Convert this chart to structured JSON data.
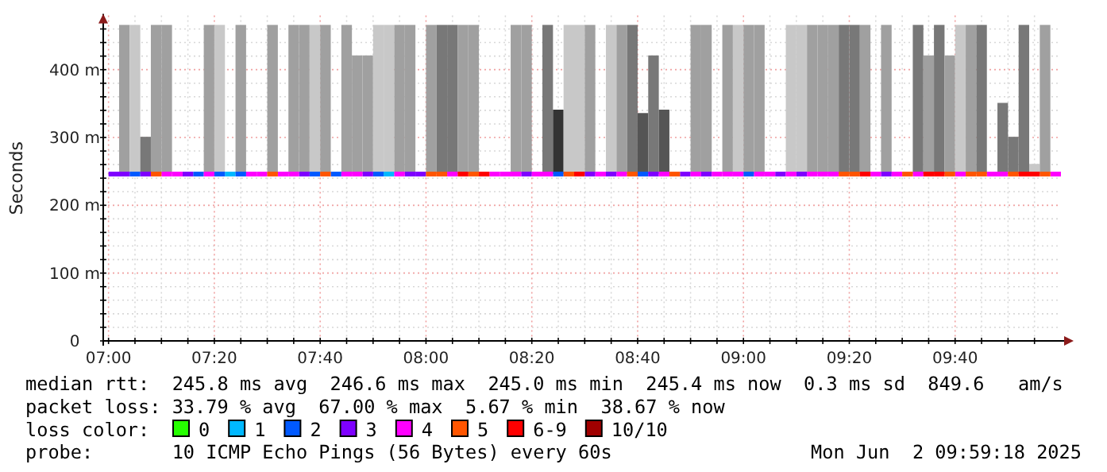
{
  "chart_data": {
    "type": "scatter",
    "ylabel": "Seconds",
    "legend_title": "loss color:",
    "legend": "bottom",
    "grid": true,
    "marker": "square",
    "xlim": [
      "2025-06-02T06:59",
      "2025-06-02T10:00"
    ],
    "xticks": [
      {
        "value": "2025-06-02T07:00",
        "label": "07:00"
      },
      {
        "value": "2025-06-02T07:05",
        "label": null
      },
      {
        "value": "2025-06-02T07:10",
        "label": null
      },
      {
        "value": "2025-06-02T07:15",
        "label": null
      },
      {
        "value": "2025-06-02T07:20",
        "label": "07:20"
      },
      {
        "value": "2025-06-02T07:25",
        "label": null
      },
      {
        "value": "2025-06-02T07:30",
        "label": null
      },
      {
        "value": "2025-06-02T07:35",
        "label": null
      },
      {
        "value": "2025-06-02T07:40",
        "label": "07:40"
      },
      {
        "value": "2025-06-02T07:45",
        "label": null
      },
      {
        "value": "2025-06-02T07:50",
        "label": null
      },
      {
        "value": "2025-06-02T07:55",
        "label": null
      },
      {
        "value": "2025-06-02T08:00",
        "label": "08:00"
      },
      {
        "value": "2025-06-02T08:05",
        "label": null
      },
      {
        "value": "2025-06-02T08:10",
        "label": null
      },
      {
        "value": "2025-06-02T08:15",
        "label": null
      },
      {
        "value": "2025-06-02T08:20",
        "label": "08:20"
      },
      {
        "value": "2025-06-02T08:25",
        "label": null
      },
      {
        "value": "2025-06-02T08:30",
        "label": null
      },
      {
        "value": "2025-06-02T08:35",
        "label": null
      },
      {
        "value": "2025-06-02T08:40",
        "label": "08:40"
      },
      {
        "value": "2025-06-02T08:45",
        "label": null
      },
      {
        "value": "2025-06-02T08:50",
        "label": null
      },
      {
        "value": "2025-06-02T08:55",
        "label": null
      },
      {
        "value": "2025-06-02T09:00",
        "label": "09:00"
      },
      {
        "value": "2025-06-02T09:05",
        "label": null
      },
      {
        "value": "2025-06-02T09:10",
        "label": null
      },
      {
        "value": "2025-06-02T09:15",
        "label": null
      },
      {
        "value": "2025-06-02T09:20",
        "label": "09:20"
      },
      {
        "value": "2025-06-02T09:25",
        "label": null
      },
      {
        "value": "2025-06-02T09:30",
        "label": null
      },
      {
        "value": "2025-06-02T09:35",
        "label": null
      },
      {
        "value": "2025-06-02T09:40",
        "label": "09:40"
      },
      {
        "value": "2025-06-02T09:45",
        "label": null
      },
      {
        "value": "2025-06-02T09:50",
        "label": null
      },
      {
        "value": "2025-06-02T09:55",
        "label": null
      }
    ],
    "ylim": [
      0,
      480
    ],
    "yticks": [
      0,
      {
        "value": 20,
        "label": null
      },
      {
        "value": 40,
        "label": null
      },
      {
        "value": 60,
        "label": null
      },
      {
        "value": 80,
        "label": null
      },
      {
        "value": 100,
        "label": "100 m"
      },
      {
        "value": 120,
        "label": null
      },
      {
        "value": 140,
        "label": null
      },
      {
        "value": 160,
        "label": null
      },
      {
        "value": 180,
        "label": null
      },
      {
        "value": 200,
        "label": "200 m"
      },
      {
        "value": 220,
        "label": null
      },
      {
        "value": 240,
        "label": null
      },
      {
        "value": 260,
        "label": null
      },
      {
        "value": 280,
        "label": null
      },
      {
        "value": 300,
        "label": "300 m"
      },
      {
        "value": 320,
        "label": null
      },
      {
        "value": 340,
        "label": null
      },
      {
        "value": 360,
        "label": null
      },
      {
        "value": 380,
        "label": null
      },
      {
        "value": 400,
        "label": "400 m"
      },
      {
        "value": 420,
        "label": null
      },
      {
        "value": 440,
        "label": null
      },
      {
        "value": 460,
        "label": null
      }
    ],
    "series": [
      {
        "type": "bar",
        "x": [
          "2025-06-02T07:03",
          "2025-06-02T07:05",
          "2025-06-02T07:07",
          "2025-06-02T07:09",
          "2025-06-02T07:11",
          "2025-06-02T07:19",
          "2025-06-02T07:21",
          "2025-06-02T07:25",
          "2025-06-02T07:31",
          "2025-06-02T07:35",
          "2025-06-02T07:37",
          "2025-06-02T07:39",
          "2025-06-02T07:41",
          "2025-06-02T07:45",
          "2025-06-02T07:47",
          "2025-06-02T07:49",
          "2025-06-02T07:51",
          "2025-06-02T07:53",
          "2025-06-02T07:55",
          "2025-06-02T07:57",
          "2025-06-02T08:01",
          "2025-06-02T08:03",
          "2025-06-02T08:05",
          "2025-06-02T08:07",
          "2025-06-02T08:09",
          "2025-06-02T08:17",
          "2025-06-02T08:19",
          "2025-06-02T08:23",
          "2025-06-02T08:25",
          "2025-06-02T08:27",
          "2025-06-02T08:29",
          "2025-06-02T08:31",
          "2025-06-02T08:35",
          "2025-06-02T08:37",
          "2025-06-02T08:39",
          "2025-06-02T08:41",
          "2025-06-02T08:43",
          "2025-06-02T08:45",
          "2025-06-02T08:51",
          "2025-06-02T08:53",
          "2025-06-02T08:57",
          "2025-06-02T08:59",
          "2025-06-02T09:01",
          "2025-06-02T09:03",
          "2025-06-02T09:09",
          "2025-06-02T09:11",
          "2025-06-02T09:13",
          "2025-06-02T09:15",
          "2025-06-02T09:17",
          "2025-06-02T09:19",
          "2025-06-02T09:21",
          "2025-06-02T09:23",
          "2025-06-02T09:27",
          "2025-06-02T09:33",
          "2025-06-02T09:35",
          "2025-06-02T09:37",
          "2025-06-02T09:39",
          "2025-06-02T09:41",
          "2025-06-02T09:43",
          "2025-06-02T09:45",
          "2025-06-02T09:49",
          "2025-06-02T09:51",
          "2025-06-02T09:53",
          "2025-06-02T09:55",
          "2025-06-02T09:57"
        ],
        "values": [
          220,
          220,
          55,
          220,
          220,
          220,
          220,
          220,
          220,
          220,
          220,
          220,
          220,
          220,
          175,
          175,
          220,
          220,
          220,
          220,
          220,
          220,
          220,
          220,
          220,
          220,
          220,
          220,
          95,
          220,
          220,
          220,
          220,
          220,
          220,
          90,
          175,
          95,
          220,
          220,
          220,
          220,
          220,
          220,
          220,
          220,
          220,
          220,
          220,
          220,
          220,
          220,
          220,
          220,
          175,
          220,
          175,
          220,
          220,
          220,
          105,
          55,
          220,
          15,
          220
        ],
        "base": [
          246,
          246,
          246,
          246,
          246,
          246,
          246,
          246,
          246,
          246,
          246,
          246,
          246,
          246,
          246,
          246,
          246,
          246,
          246,
          246,
          246,
          246,
          246,
          246,
          246,
          246,
          246,
          246,
          246,
          246,
          246,
          246,
          246,
          246,
          246,
          246,
          246,
          246,
          246,
          246,
          246,
          246,
          246,
          246,
          246,
          246,
          246,
          246,
          246,
          246,
          246,
          246,
          246,
          246,
          246,
          246,
          246,
          246,
          246,
          246,
          246,
          246,
          246,
          246,
          246
        ],
        "colors": [
          "#a0a0a0",
          "#c8c8c8",
          "#787878",
          "#a0a0a0",
          "#a0a0a0",
          "#a0a0a0",
          "#c8c8c8",
          "#a0a0a0",
          "#a0a0a0",
          "#a0a0a0",
          "#a0a0a0",
          "#c8c8c8",
          "#a0a0a0",
          "#a0a0a0",
          "#a0a0a0",
          "#a0a0a0",
          "#c8c8c8",
          "#c8c8c8",
          "#a0a0a0",
          "#a0a0a0",
          "#a0a0a0",
          "#787878",
          "#787878",
          "#a0a0a0",
          "#a0a0a0",
          "#a0a0a0",
          "#a0a0a0",
          "#787878",
          "#333333",
          "#c8c8c8",
          "#c8c8c8",
          "#a0a0a0",
          "#c8c8c8",
          "#a0a0a0",
          "#787878",
          "#555555",
          "#787878",
          "#555555",
          "#a0a0a0",
          "#a0a0a0",
          "#a0a0a0",
          "#c8c8c8",
          "#a0a0a0",
          "#a0a0a0",
          "#c8c8c8",
          "#c8c8c8",
          "#a0a0a0",
          "#a0a0a0",
          "#a0a0a0",
          "#787878",
          "#787878",
          "#a0a0a0",
          "#a0a0a0",
          "#787878",
          "#a0a0a0",
          "#787878",
          "#a0a0a0",
          "#c8c8c8",
          "#a0a0a0",
          "#787878",
          "#787878",
          "#787878",
          "#787878",
          "#c8c8c8",
          "#a0a0a0"
        ]
      },
      {
        "name": "0",
        "color": "#26ff00"
      },
      {
        "name": "1",
        "color": "#00b8ff",
        "x": [
          "2025-06-02T07:23",
          "2025-06-02T07:53"
        ],
        "values": [
          246,
          246
        ]
      },
      {
        "name": "2",
        "color": "#0059ff",
        "x": [
          "2025-06-02T07:05",
          "2025-06-02T07:17",
          "2025-06-02T07:21",
          "2025-06-02T07:25",
          "2025-06-02T07:39",
          "2025-06-02T07:43",
          "2025-06-02T07:51",
          "2025-06-02T08:25",
          "2025-06-02T08:41",
          "2025-06-02T09:01"
        ],
        "values": [
          246,
          246,
          246,
          246,
          246,
          246,
          246,
          246,
          246,
          246
        ]
      },
      {
        "name": "3",
        "color": "#7e00ff",
        "x": [
          "2025-06-02T07:01",
          "2025-06-02T07:03",
          "2025-06-02T07:07",
          "2025-06-02T07:15",
          "2025-06-02T07:37",
          "2025-06-02T07:49",
          "2025-06-02T07:57",
          "2025-06-02T07:59",
          "2025-06-02T08:19",
          "2025-06-02T08:31",
          "2025-06-02T08:35",
          "2025-06-02T08:43",
          "2025-06-02T08:49",
          "2025-06-02T08:53",
          "2025-06-02T09:07",
          "2025-06-02T09:11",
          "2025-06-02T09:27"
        ],
        "values": [
          246,
          246,
          246,
          246,
          246,
          246,
          246,
          246,
          246,
          246,
          246,
          246,
          246,
          246,
          246,
          246,
          246
        ]
      },
      {
        "name": "4",
        "color": "#ff00ff",
        "x": [
          "2025-06-02T07:11",
          "2025-06-02T07:13",
          "2025-06-02T07:19",
          "2025-06-02T07:27",
          "2025-06-02T07:29",
          "2025-06-02T07:33",
          "2025-06-02T07:35",
          "2025-06-02T07:45",
          "2025-06-02T07:47",
          "2025-06-02T07:55",
          "2025-06-02T08:05",
          "2025-06-02T08:13",
          "2025-06-02T08:15",
          "2025-06-02T08:17",
          "2025-06-02T08:21",
          "2025-06-02T08:23",
          "2025-06-02T08:33",
          "2025-06-02T08:37",
          "2025-06-02T08:45",
          "2025-06-02T08:51",
          "2025-06-02T08:55",
          "2025-06-02T08:57",
          "2025-06-02T08:59",
          "2025-06-02T09:03",
          "2025-06-02T09:05",
          "2025-06-02T09:09",
          "2025-06-02T09:13",
          "2025-06-02T09:15",
          "2025-06-02T09:17",
          "2025-06-02T09:25",
          "2025-06-02T09:29",
          "2025-06-02T09:33",
          "2025-06-02T09:41",
          "2025-06-02T09:47",
          "2025-06-02T09:49",
          "2025-06-02T09:59"
        ],
        "values": [
          246,
          246,
          246,
          246,
          246,
          246,
          246,
          246,
          246,
          246,
          246,
          246,
          246,
          246,
          246,
          246,
          246,
          246,
          246,
          246,
          246,
          246,
          246,
          246,
          246,
          246,
          246,
          246,
          246,
          246,
          246,
          246,
          246,
          246,
          246,
          246
        ]
      },
      {
        "name": "5",
        "color": "#ff5500",
        "x": [
          "2025-06-02T07:09",
          "2025-06-02T07:31",
          "2025-06-02T07:41",
          "2025-06-02T08:01",
          "2025-06-02T08:03",
          "2025-06-02T08:09",
          "2025-06-02T08:27",
          "2025-06-02T08:39",
          "2025-06-02T08:47",
          "2025-06-02T09:19",
          "2025-06-02T09:21",
          "2025-06-02T09:31",
          "2025-06-02T09:39",
          "2025-06-02T09:43",
          "2025-06-02T09:45",
          "2025-06-02T09:51",
          "2025-06-02T09:57"
        ],
        "values": [
          246,
          246,
          246,
          246,
          246,
          246,
          246,
          246,
          246,
          246,
          246,
          246,
          246,
          246,
          246,
          246,
          246
        ]
      },
      {
        "name": "6-9",
        "color": "#ff0000",
        "x": [
          "2025-06-02T08:07",
          "2025-06-02T08:11",
          "2025-06-02T08:29",
          "2025-06-02T09:23",
          "2025-06-02T09:35",
          "2025-06-02T09:37",
          "2025-06-02T09:53",
          "2025-06-02T09:55"
        ],
        "values": [
          246,
          246,
          246,
          246,
          246,
          246,
          246,
          246
        ]
      },
      {
        "name": "10/10",
        "color": "#a10000"
      }
    ],
    "annotations": [
      "median rtt:  245.8 ms avg  246.6 ms max  245.0 ms min  245.4 ms now  0.3 ms sd  849.6   am/s",
      "packet loss: 33.79 % avg  67.00 % max  5.67 % min  38.67 % now",
      "probe:       10 ICMP Echo Pings (56 Bytes) every 60s",
      "Mon Jun  2 09:59:18 2025"
    ]
  }
}
